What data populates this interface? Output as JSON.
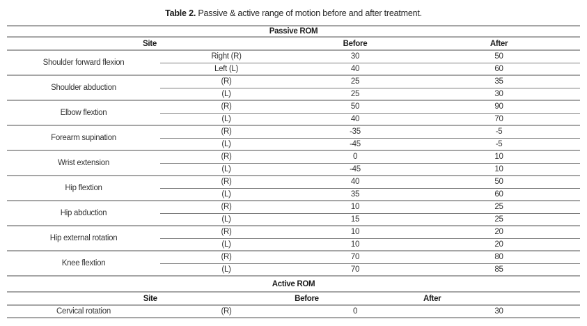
{
  "caption": {
    "label": "Table 2.",
    "text": " Passive & active range of motion before and after treatment."
  },
  "colors": {
    "text": "#333333",
    "heading_text": "#1c1c1c",
    "rule_strong": "#a6a6a6",
    "rule_light": "#7d7d7d",
    "background": "#ffffff"
  },
  "passive": {
    "section_title": "Passive ROM",
    "headers": {
      "site": "Site",
      "before": "Before",
      "after": "After"
    },
    "groups": [
      {
        "site": "Shoulder forward flexion",
        "rows": [
          {
            "side": "Right (R)",
            "before": "30",
            "after": "50"
          },
          {
            "side": "Left (L)",
            "before": "40",
            "after": "60"
          }
        ]
      },
      {
        "site": "Shoulder abduction",
        "rows": [
          {
            "side": "(R)",
            "before": "25",
            "after": "35"
          },
          {
            "side": "(L)",
            "before": "25",
            "after": "30"
          }
        ]
      },
      {
        "site": "Elbow flextion",
        "rows": [
          {
            "side": "(R)",
            "before": "50",
            "after": "90"
          },
          {
            "side": "(L)",
            "before": "40",
            "after": "70"
          }
        ]
      },
      {
        "site": "Forearm supination",
        "rows": [
          {
            "side": "(R)",
            "before": "-35",
            "after": "-5"
          },
          {
            "side": "(L)",
            "before": "-45",
            "after": "-5"
          }
        ]
      },
      {
        "site": "Wrist extension",
        "rows": [
          {
            "side": "(R)",
            "before": "0",
            "after": "10"
          },
          {
            "side": "(L)",
            "before": "-45",
            "after": "10"
          }
        ]
      },
      {
        "site": "Hip flextion",
        "rows": [
          {
            "side": "(R)",
            "before": "40",
            "after": "50"
          },
          {
            "side": "(L)",
            "before": "35",
            "after": "60"
          }
        ]
      },
      {
        "site": "Hip abduction",
        "rows": [
          {
            "side": "(R)",
            "before": "10",
            "after": "25"
          },
          {
            "side": "(L)",
            "before": "15",
            "after": "25"
          }
        ]
      },
      {
        "site": "Hip external rotation",
        "rows": [
          {
            "side": "(R)",
            "before": "10",
            "after": "20"
          },
          {
            "side": "(L)",
            "before": "10",
            "after": "20"
          }
        ]
      },
      {
        "site": "Knee flextion",
        "rows": [
          {
            "side": "(R)",
            "before": "70",
            "after": "80"
          },
          {
            "side": "(L)",
            "before": "70",
            "after": "85"
          }
        ]
      }
    ]
  },
  "active": {
    "section_title": "Active ROM",
    "headers": {
      "site": "Site",
      "before": "Before",
      "after": "After"
    },
    "groups": [
      {
        "site": "Cervical rotation",
        "rows": [
          {
            "side": "(R)",
            "before": "0",
            "after": "30"
          }
        ]
      }
    ]
  }
}
